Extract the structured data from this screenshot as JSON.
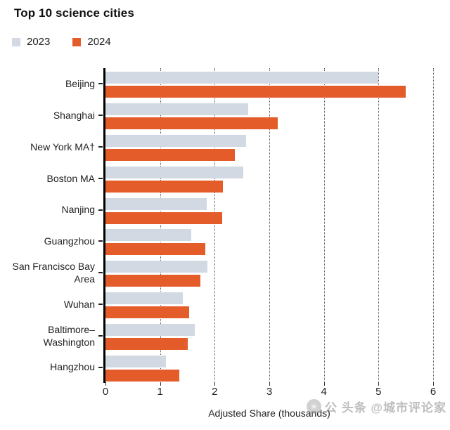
{
  "chart": {
    "title": "Top 10 science cities",
    "legend": [
      {
        "label": "2023",
        "color": "#d2d9e2"
      },
      {
        "label": "2024",
        "color": "#e45c2a"
      }
    ]
  },
  "chart_data": {
    "type": "bar",
    "orientation": "horizontal",
    "title": "Top 10 science cities",
    "categories": [
      "Beijing",
      "Shanghai",
      "New York MA†",
      "Boston MA",
      "Nanjing",
      "Guangzhou",
      "San Francisco Bay Area",
      "Wuhan",
      "Baltimore–Washington",
      "Hangzhou"
    ],
    "series": [
      {
        "name": "2023",
        "color": "#d2d9e2",
        "values": [
          5.0,
          2.62,
          2.58,
          2.52,
          1.86,
          1.57,
          1.87,
          1.41,
          1.64,
          1.11
        ]
      },
      {
        "name": "2024",
        "color": "#e45c2a",
        "values": [
          5.5,
          3.16,
          2.37,
          2.15,
          2.14,
          1.83,
          1.74,
          1.53,
          1.5,
          1.35
        ]
      }
    ],
    "xlabel": "Adjusted Share (thousands)",
    "xlim": [
      0,
      6
    ],
    "xticks": [
      0,
      1,
      2,
      3,
      4,
      5,
      6
    ],
    "grid": "vertical-dotted",
    "legend_position": "top-left",
    "axis_color": "#000000",
    "gridline_style": "dotted"
  },
  "watermark": {
    "icon": "avatar-circle",
    "icon_glyph": "✳",
    "text": "公 头条 @城市评论家"
  }
}
